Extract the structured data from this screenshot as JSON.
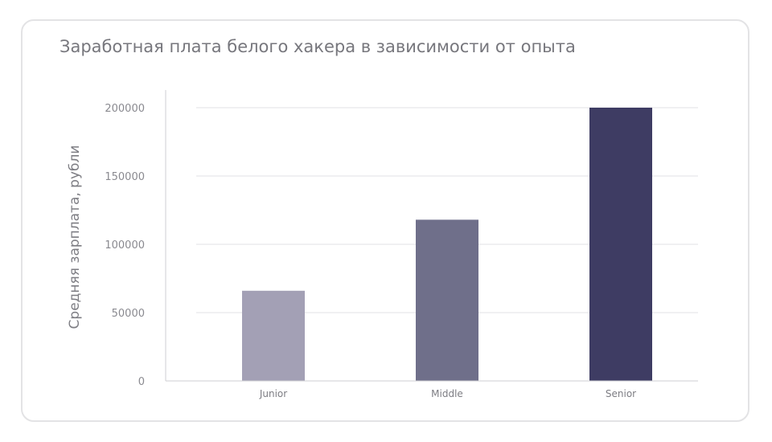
{
  "chart_data": {
    "type": "bar",
    "title": "Заработная плата белого хакера в зависимости от опыта",
    "xlabel": "",
    "ylabel": "Средняя зарплата, рубли",
    "categories": [
      "Junior",
      "Middle",
      "Senior"
    ],
    "values": [
      66000,
      118000,
      200000
    ],
    "ylim": [
      0,
      200000
    ],
    "yticks": [
      "0",
      "50000",
      "100000",
      "150000",
      "200000"
    ],
    "ytick_values": [
      0,
      50000,
      100000,
      150000,
      200000
    ],
    "colors": [
      "#a3a0b5",
      "#6f6f8a",
      "#3e3c63"
    ],
    "grid": true,
    "legend": "none"
  },
  "colors": {
    "grid": "#e1e1e4",
    "axis": "#cfcfd3"
  }
}
